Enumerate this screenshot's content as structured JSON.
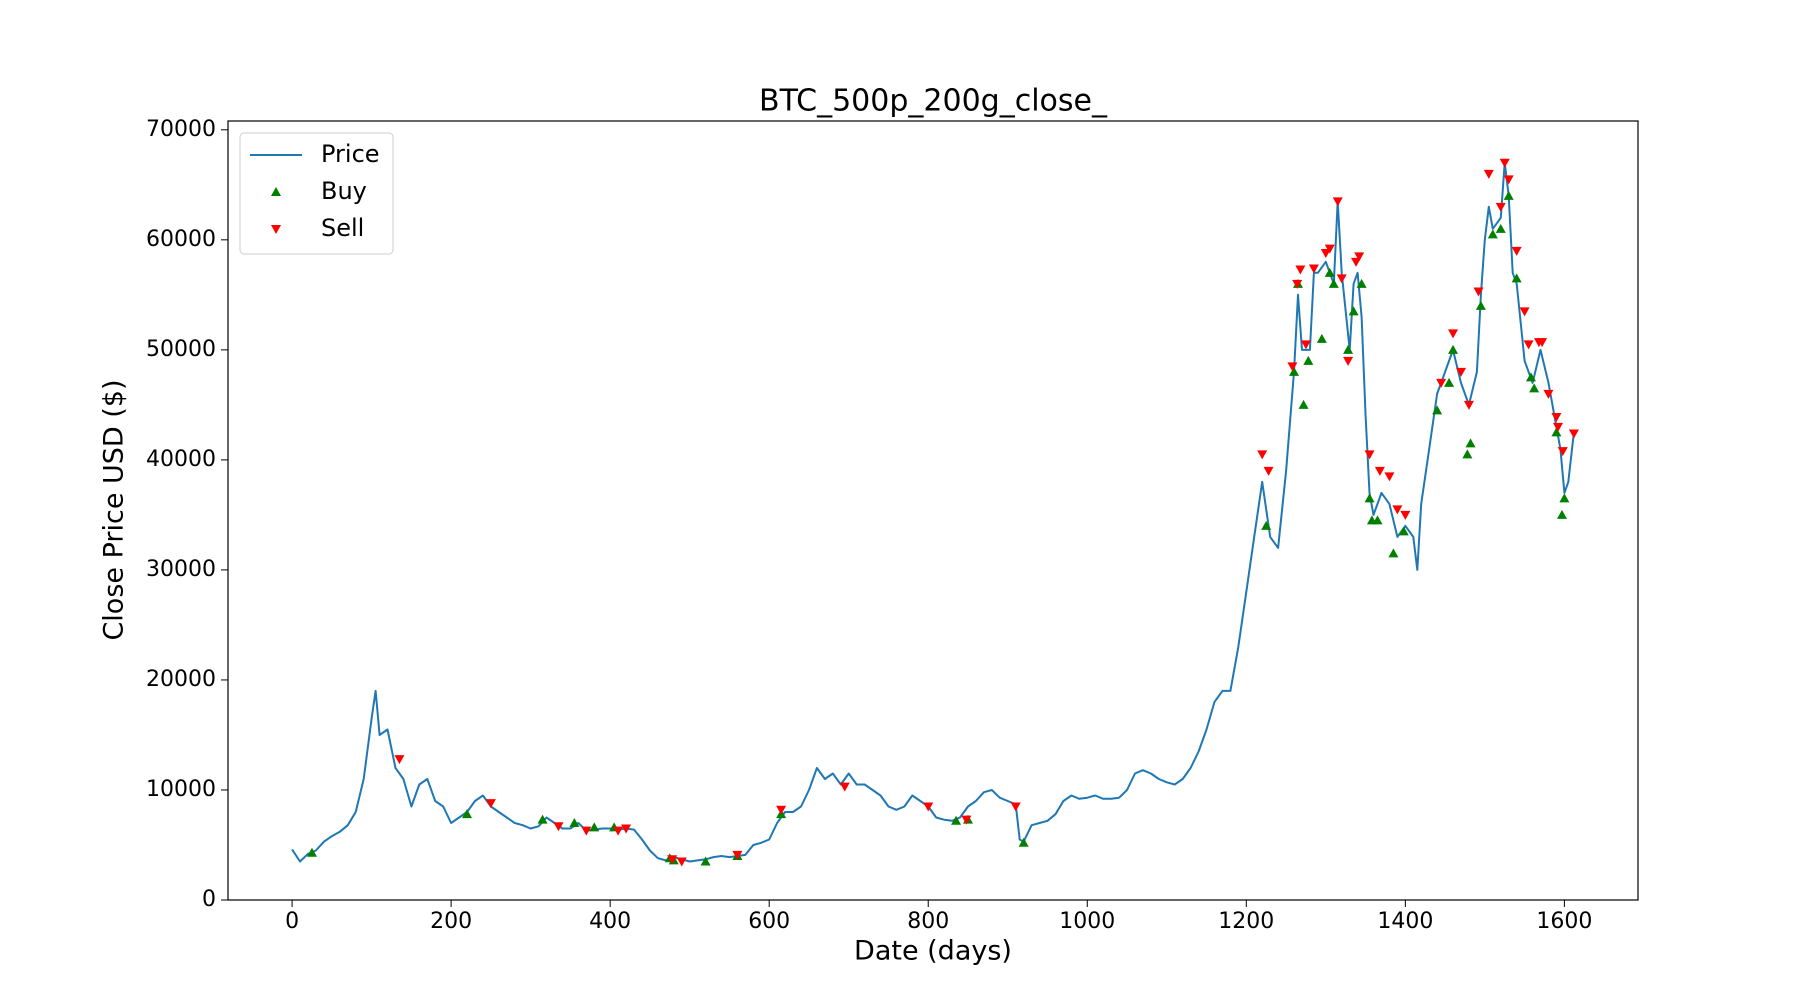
{
  "chart_data": {
    "type": "line",
    "title": "BTC_500p_200g_close_",
    "xlabel": "Date (days)",
    "ylabel": "Close Price USD ($)",
    "xlim": [
      -80.6,
      1692.6
    ],
    "ylim": [
      0,
      70800
    ],
    "xticks": [
      0,
      200,
      400,
      600,
      800,
      1000,
      1200,
      1400,
      1600
    ],
    "yticks": [
      0,
      10000,
      20000,
      30000,
      40000,
      50000,
      60000,
      70000
    ],
    "legend": "upper left",
    "series": [
      {
        "name": "Price",
        "type": "line",
        "color": "#1f77b4",
        "x": [
          0,
          10,
          20,
          30,
          40,
          50,
          60,
          70,
          80,
          90,
          100,
          105,
          110,
          120,
          130,
          140,
          150,
          160,
          170,
          180,
          190,
          200,
          210,
          220,
          230,
          240,
          250,
          260,
          270,
          280,
          290,
          300,
          310,
          320,
          330,
          340,
          350,
          360,
          370,
          380,
          390,
          400,
          410,
          420,
          430,
          440,
          450,
          460,
          470,
          480,
          490,
          500,
          510,
          520,
          530,
          540,
          550,
          560,
          570,
          580,
          590,
          600,
          610,
          620,
          630,
          640,
          650,
          660,
          670,
          680,
          690,
          700,
          710,
          720,
          730,
          740,
          750,
          760,
          770,
          780,
          790,
          800,
          810,
          820,
          830,
          840,
          850,
          860,
          870,
          880,
          890,
          900,
          910,
          915,
          920,
          930,
          940,
          950,
          960,
          970,
          980,
          990,
          1000,
          1010,
          1020,
          1030,
          1040,
          1050,
          1060,
          1070,
          1080,
          1090,
          1100,
          1110,
          1120,
          1130,
          1140,
          1150,
          1160,
          1170,
          1180,
          1190,
          1200,
          1210,
          1220,
          1230,
          1240,
          1250,
          1260,
          1265,
          1270,
          1280,
          1285,
          1290,
          1300,
          1310,
          1315,
          1320,
          1330,
          1335,
          1340,
          1345,
          1350,
          1355,
          1360,
          1370,
          1380,
          1390,
          1400,
          1410,
          1415,
          1420,
          1430,
          1440,
          1450,
          1460,
          1470,
          1480,
          1490,
          1495,
          1500,
          1505,
          1510,
          1520,
          1525,
          1530,
          1535,
          1540,
          1550,
          1560,
          1570,
          1580,
          1590,
          1595,
          1600,
          1605,
          1612
        ],
        "values": [
          4600,
          3500,
          4200,
          4500,
          5300,
          5800,
          6200,
          6800,
          8000,
          11000,
          16500,
          19000,
          15000,
          15500,
          12000,
          11000,
          8500,
          10500,
          11000,
          9000,
          8500,
          7000,
          7500,
          8000,
          9000,
          9500,
          8500,
          8000,
          7500,
          7000,
          6800,
          6500,
          6700,
          7500,
          7000,
          6500,
          6500,
          7000,
          6300,
          6400,
          6500,
          6500,
          6400,
          6500,
          6400,
          5500,
          4500,
          3800,
          3600,
          3900,
          3700,
          3500,
          3600,
          3700,
          3900,
          4000,
          3900,
          4000,
          4100,
          5000,
          5200,
          5500,
          7000,
          8000,
          8000,
          8500,
          10000,
          12000,
          11000,
          11500,
          10500,
          11500,
          10500,
          10500,
          10000,
          9500,
          8500,
          8200,
          8500,
          9500,
          9000,
          8500,
          7500,
          7300,
          7200,
          7500,
          8500,
          9000,
          9800,
          10000,
          9300,
          9000,
          8700,
          5500,
          5300,
          6800,
          7000,
          7200,
          7800,
          9000,
          9500,
          9200,
          9300,
          9500,
          9200,
          9200,
          9300,
          10000,
          11500,
          11800,
          11500,
          11000,
          10700,
          10500,
          11000,
          12000,
          13500,
          15500,
          18000,
          19000,
          19000,
          23000,
          28000,
          33000,
          38000,
          33000,
          32000,
          39000,
          48000,
          55000,
          50000,
          50000,
          57000,
          57000,
          58000,
          56000,
          63500,
          57000,
          50000,
          56000,
          57000,
          53000,
          44000,
          37000,
          35000,
          37000,
          36000,
          33000,
          34000,
          33000,
          30000,
          36000,
          41000,
          46000,
          48000,
          50000,
          47000,
          45000,
          48000,
          55000,
          60000,
          63000,
          61000,
          62000,
          67000,
          64000,
          57000,
          56000,
          49000,
          47000,
          50000,
          47000,
          43000,
          41000,
          37000,
          38000,
          42500
        ]
      },
      {
        "name": "Buy",
        "type": "scatter",
        "marker": "triangle-up",
        "color": "green",
        "x": [
          25,
          220,
          315,
          355,
          380,
          405,
          475,
          480,
          520,
          560,
          615,
          835,
          850,
          920,
          1225,
          1260,
          1265,
          1272,
          1278,
          1295,
          1305,
          1310,
          1328,
          1335,
          1345,
          1355,
          1358,
          1365,
          1385,
          1398,
          1440,
          1455,
          1460,
          1478,
          1482,
          1495,
          1510,
          1520,
          1530,
          1540,
          1558,
          1562,
          1590,
          1597,
          1600
        ],
        "values": [
          4300,
          7800,
          7300,
          7000,
          6600,
          6600,
          3800,
          3600,
          3500,
          4000,
          7800,
          7200,
          7300,
          5200,
          34000,
          48000,
          56000,
          45000,
          49000,
          51000,
          57000,
          56000,
          50000,
          53500,
          56000,
          36500,
          34500,
          34500,
          31500,
          33500,
          44500,
          47000,
          50000,
          40500,
          41500,
          54000,
          60500,
          61000,
          64000,
          56500,
          47500,
          46500,
          42500,
          35000,
          36500
        ]
      },
      {
        "name": "Sell",
        "type": "scatter",
        "marker": "triangle-down",
        "color": "red",
        "x": [
          135,
          250,
          335,
          370,
          410,
          420,
          478,
          490,
          560,
          615,
          695,
          800,
          848,
          910,
          1220,
          1228,
          1258,
          1264,
          1268,
          1275,
          1285,
          1300,
          1305,
          1315,
          1320,
          1328,
          1338,
          1342,
          1355,
          1368,
          1380,
          1390,
          1400,
          1445,
          1460,
          1470,
          1480,
          1492,
          1505,
          1520,
          1525,
          1530,
          1540,
          1550,
          1555,
          1568,
          1572,
          1580,
          1590,
          1592,
          1598,
          1612
        ],
        "values": [
          12800,
          8800,
          6700,
          6300,
          6300,
          6500,
          3700,
          3500,
          4100,
          8200,
          10300,
          8500,
          7300,
          8500,
          40500,
          39000,
          48500,
          56000,
          57300,
          50500,
          57400,
          58800,
          59200,
          63500,
          56500,
          49000,
          58000,
          58500,
          40500,
          39000,
          38500,
          35500,
          35000,
          47000,
          51500,
          48000,
          45000,
          55300,
          66000,
          63000,
          67000,
          65500,
          59000,
          53500,
          50500,
          50700,
          50700,
          46000,
          43900,
          43000,
          40800,
          42400
        ]
      }
    ]
  }
}
